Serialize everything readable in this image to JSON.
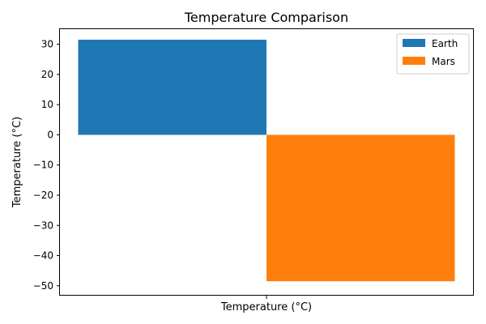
{
  "chart_data": {
    "type": "bar",
    "title": "Temperature Comparison",
    "xlabel": "Temperature (°C)",
    "ylabel": "Temperature (°C)",
    "categories": [
      ""
    ],
    "series": [
      {
        "name": "Earth",
        "color": "#1f77b4",
        "values": [
          31.5
        ]
      },
      {
        "name": "Mars",
        "color": "#ff7f0e",
        "values": [
          -48.5
        ]
      }
    ],
    "ylim": [
      -53,
      35
    ],
    "yticks": [
      30,
      20,
      10,
      0,
      -10,
      -20,
      -30,
      -40,
      -50
    ],
    "ytick_labels": [
      "30",
      "20",
      "10",
      "0",
      "−10",
      "−20",
      "−30",
      "−40",
      "−50"
    ],
    "grid": false,
    "legend_position": "top-right"
  }
}
